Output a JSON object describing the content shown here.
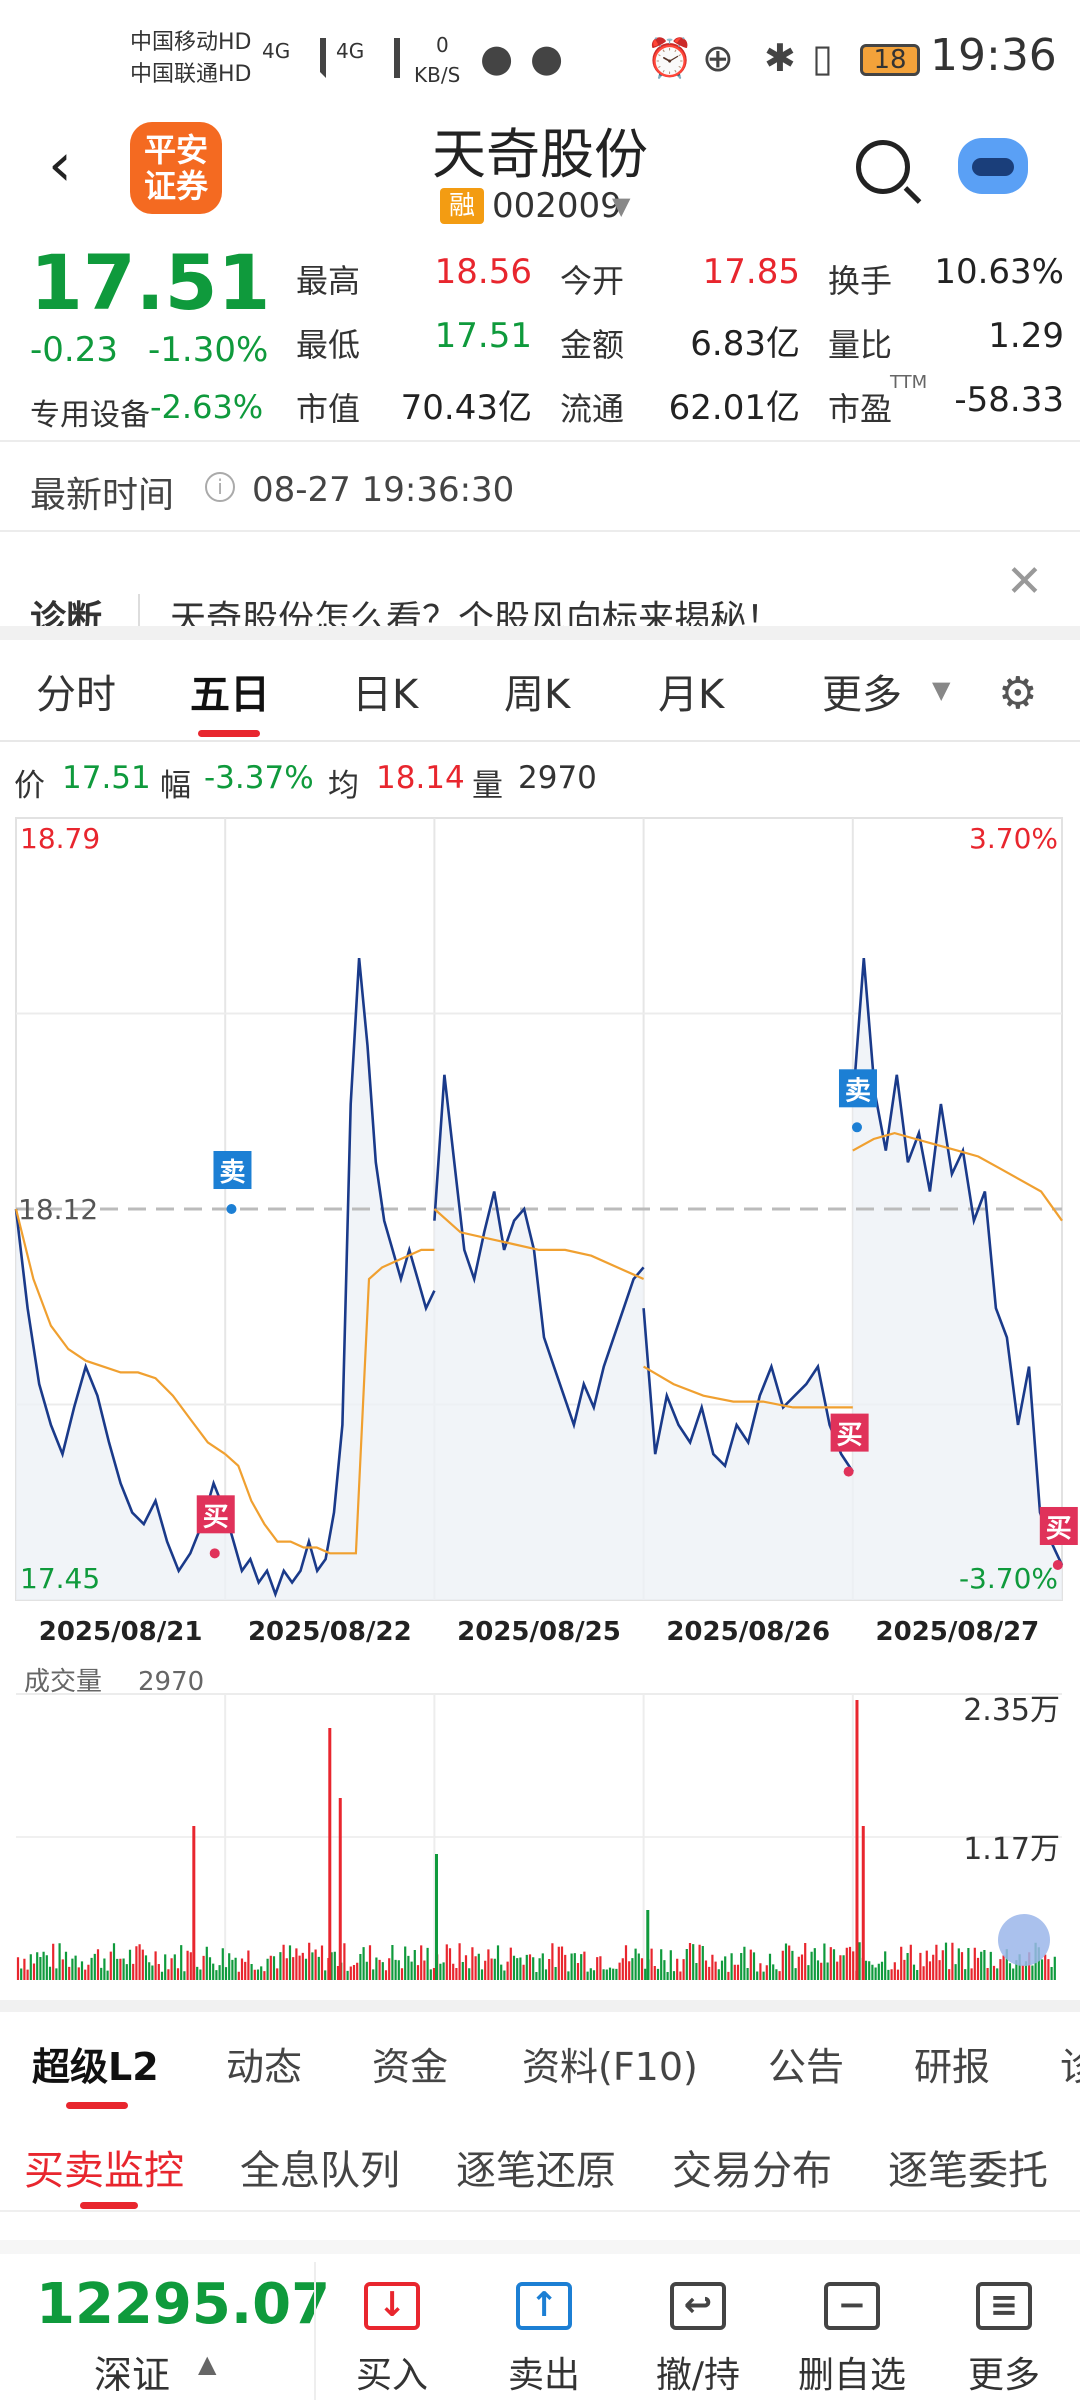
{
  "status_bar": {
    "carrier1": "中国移动HD",
    "carrier2": "中国联通HD",
    "net1": "4G",
    "net2": "4G",
    "speed_value": "0",
    "speed_unit": "KB/S",
    "battery": "18",
    "time": "19:36"
  },
  "header": {
    "logo_line1": "平安",
    "logo_line2": "证券",
    "stock_name": "天奇股份",
    "badge": "融",
    "stock_code": "002009"
  },
  "quote": {
    "price": "17.51",
    "change": "-0.23",
    "change_pct": "-1.30%",
    "sector": "专用设备",
    "sector_pct": "-2.63%",
    "grid": [
      {
        "label": "最高",
        "value": "18.56",
        "color": "#e8262e"
      },
      {
        "label": "今开",
        "value": "17.85",
        "color": "#e8262e"
      },
      {
        "label": "换手",
        "value": "10.63%",
        "color": "#222"
      },
      {
        "label": "最低",
        "value": "17.51",
        "color": "#0f9a3c"
      },
      {
        "label": "金额",
        "value": "6.83亿",
        "color": "#222"
      },
      {
        "label": "量比",
        "value": "1.29",
        "color": "#222"
      },
      {
        "label": "市值",
        "value": "70.43亿",
        "color": "#222"
      },
      {
        "label": "流通",
        "value": "62.01亿",
        "color": "#222"
      },
      {
        "label": "市盈",
        "value": "-58.33",
        "color": "#222"
      }
    ],
    "pe_sup": "TTM"
  },
  "latest_time": {
    "label": "最新时间",
    "value": "08-27 19:36:30"
  },
  "diagnosis": {
    "label": "诊断",
    "text": "天奇股份怎么看？个股风向标来揭秘！"
  },
  "tabs": [
    "分时",
    "五日",
    "日K",
    "周K",
    "月K",
    "更多"
  ],
  "active_tab": "五日",
  "info_line": {
    "price_label": "价",
    "price": "17.51",
    "range_label": "幅",
    "range": "-3.37%",
    "avg_label": "均",
    "avg": "18.14",
    "vol_label": "量",
    "vol": "2970"
  },
  "chart_data": {
    "type": "line",
    "x": [
      "2025/08/21",
      "2025/08/22",
      "2025/08/25",
      "2025/08/26",
      "2025/08/27"
    ],
    "ylim": [
      17.45,
      18.79
    ],
    "pct_range": [
      "3.70%",
      "-3.70%"
    ],
    "y_top_label": "18.79",
    "y_bottom_label": "17.45",
    "pct_top_label": "3.70%",
    "pct_bottom_label": "-3.70%",
    "prev_close": "18.12",
    "markers": [
      {
        "label": "买",
        "day": 0,
        "pos": 0.95,
        "price": 17.53
      },
      {
        "label": "卖",
        "day": 1,
        "pos": 0.03,
        "price": 18.12
      },
      {
        "label": "卖",
        "day": 4,
        "pos": 0.02,
        "price": 18.26
      },
      {
        "label": "买",
        "day": 3,
        "pos": 0.98,
        "price": 17.67
      },
      {
        "label": "买",
        "day": 4,
        "pos": 0.98,
        "price": 17.51
      }
    ],
    "series": [
      {
        "color": "#1a3a8a",
        "days": [
          [
            18.12,
            17.95,
            17.82,
            17.75,
            17.7,
            17.78,
            17.85,
            17.8,
            17.72,
            17.65,
            17.6,
            17.58,
            17.62,
            17.55,
            17.5,
            17.53,
            17.58,
            17.65,
            17.6
          ],
          [
            17.6,
            17.55,
            17.5,
            17.52,
            17.48,
            17.5,
            17.46,
            17.5,
            17.48,
            17.5,
            17.55,
            17.5,
            17.52,
            17.6,
            17.75,
            18.3,
            18.55,
            18.4,
            18.2,
            18.1,
            18.05,
            18.0,
            18.05,
            18.0,
            17.95,
            17.98
          ],
          [
            18.1,
            18.35,
            18.2,
            18.05,
            18.0,
            18.08,
            18.15,
            18.05,
            18.1,
            18.12,
            18.05,
            17.9,
            17.85,
            17.8,
            17.75,
            17.82,
            17.78,
            17.85,
            17.9,
            17.95,
            18.0,
            18.02
          ],
          [
            17.95,
            17.7,
            17.8,
            17.75,
            17.72,
            17.78,
            17.7,
            17.68,
            17.75,
            17.72,
            17.8,
            17.85,
            17.78,
            17.8,
            17.82,
            17.85,
            17.75,
            17.7,
            17.67
          ],
          [
            18.3,
            18.55,
            18.32,
            18.22,
            18.35,
            18.2,
            18.25,
            18.15,
            18.3,
            18.18,
            18.22,
            18.1,
            18.15,
            17.95,
            17.9,
            17.75,
            17.85,
            17.6,
            17.55,
            17.51
          ]
        ]
      },
      {
        "color": "#f0a030",
        "days": [
          [
            18.12,
            18.0,
            17.92,
            17.88,
            17.86,
            17.85,
            17.84,
            17.84,
            17.83,
            17.8,
            17.76,
            17.72,
            17.7
          ],
          [
            17.7,
            17.68,
            17.62,
            17.58,
            17.55,
            17.55,
            17.54,
            17.54,
            17.53,
            17.53,
            17.53,
            18.0,
            18.02,
            18.03,
            18.04,
            18.05,
            18.05
          ],
          [
            18.12,
            18.08,
            18.07,
            18.06,
            18.05,
            18.05,
            18.04,
            18.02,
            18.0
          ],
          [
            17.85,
            17.82,
            17.8,
            17.79,
            17.79,
            17.78,
            17.78,
            17.78
          ],
          [
            18.22,
            18.24,
            18.25,
            18.24,
            18.23,
            18.22,
            18.21,
            18.19,
            18.17,
            18.15,
            18.1
          ]
        ]
      }
    ],
    "volume": {
      "label": "成交量",
      "value": "2970",
      "ymax_label": "2.35万",
      "ymid_label": "1.17万",
      "spikes": [
        {
          "day": 0,
          "pos": 0.85,
          "value": 0.55
        },
        {
          "day": 1,
          "pos": 0.5,
          "value": 0.9
        },
        {
          "day": 1,
          "pos": 0.55,
          "value": 0.65
        },
        {
          "day": 2,
          "pos": 0.01,
          "value": 0.45
        },
        {
          "day": 3,
          "pos": 0.02,
          "value": 0.25
        },
        {
          "day": 4,
          "pos": 0.02,
          "value": 1.0
        },
        {
          "day": 4,
          "pos": 0.05,
          "value": 0.55
        }
      ]
    }
  },
  "bottom_tabs": [
    "超级L2",
    "动态",
    "资金",
    "资料(F10)",
    "公告",
    "研报",
    "诊"
  ],
  "sub_tabs": [
    "买卖监控",
    "全息队列",
    "逐笔还原",
    "交易分布",
    "逐笔委托"
  ],
  "bottom_bar": {
    "index_value": "12295.07",
    "index_name": "深证",
    "actions": [
      {
        "label": "买入",
        "icon": "↓",
        "color": "#e8262e"
      },
      {
        "label": "卖出",
        "icon": "↑",
        "color": "#1c7fd4"
      },
      {
        "label": "撤/持",
        "icon": "↩",
        "color": "#444"
      },
      {
        "label": "删自选",
        "icon": "−",
        "color": "#444"
      },
      {
        "label": "更多",
        "icon": "≡",
        "color": "#444"
      }
    ]
  }
}
